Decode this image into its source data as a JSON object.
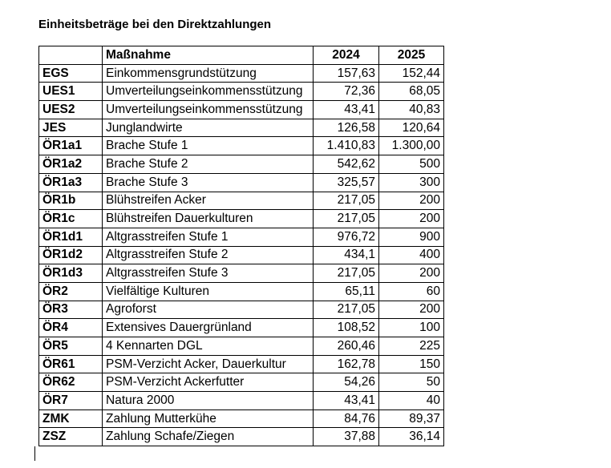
{
  "title": "Einheitsbeträge bei den Direktzahlungen",
  "table": {
    "headers": [
      "",
      "Maßnahme",
      "2024",
      "2025"
    ],
    "rows": [
      [
        "EGS",
        "Einkommensgrundstützung",
        "157,63",
        "152,44"
      ],
      [
        "UES1",
        "Umverteilungseinkommensstützung",
        "72,36",
        "68,05"
      ],
      [
        "UES2",
        "Umverteilungseinkommensstützung",
        "43,41",
        "40,83"
      ],
      [
        "JES",
        "Junglandwirte",
        "126,58",
        "120,64"
      ],
      [
        "ÖR1a1",
        "Brache Stufe 1",
        "1.410,83",
        "1.300,00"
      ],
      [
        "ÖR1a2",
        "Brache Stufe 2",
        "542,62",
        "500"
      ],
      [
        "ÖR1a3",
        "Brache Stufe 3",
        "325,57",
        "300"
      ],
      [
        "ÖR1b",
        "Blühstreifen Acker",
        "217,05",
        "200"
      ],
      [
        "ÖR1c",
        "Blühstreifen Dauerkulturen",
        "217,05",
        "200"
      ],
      [
        "ÖR1d1",
        "Altgrasstreifen Stufe 1",
        "976,72",
        "900"
      ],
      [
        "ÖR1d2",
        "Altgrasstreifen Stufe 2",
        "434,1",
        "400"
      ],
      [
        "ÖR1d3",
        "Altgrasstreifen Stufe 3",
        "217,05",
        "200"
      ],
      [
        "ÖR2",
        "Vielfältige Kulturen",
        "65,11",
        "60"
      ],
      [
        "ÖR3",
        "Agroforst",
        "217,05",
        "200"
      ],
      [
        "ÖR4",
        "Extensives Dauergrünland",
        "108,52",
        "100"
      ],
      [
        "ÖR5",
        "4 Kennarten DGL",
        "260,46",
        "225"
      ],
      [
        "ÖR61",
        "PSM-Verzicht Acker, Dauerkultur",
        "162,78",
        "150"
      ],
      [
        "ÖR62",
        "PSM-Verzicht Ackerfutter",
        "54,26",
        "50"
      ],
      [
        "ÖR7",
        "Natura 2000",
        "43,41",
        "40"
      ],
      [
        "ZMK",
        "Zahlung Mutterkühe",
        "84,76",
        "89,37"
      ],
      [
        "ZSZ",
        "Zahlung Schafe/Ziegen",
        "37,88",
        "36,14"
      ]
    ]
  }
}
